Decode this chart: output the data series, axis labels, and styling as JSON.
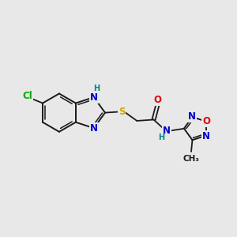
{
  "background_color": "#e8e8e8",
  "bond_color": "#1a1a1a",
  "atom_colors": {
    "N": "#0000cc",
    "O": "#dd0000",
    "S": "#ccaa00",
    "Cl": "#00aa00",
    "H": "#008888",
    "C": "#1a1a1a"
  },
  "figsize": [
    3.0,
    3.0
  ],
  "dpi": 100
}
